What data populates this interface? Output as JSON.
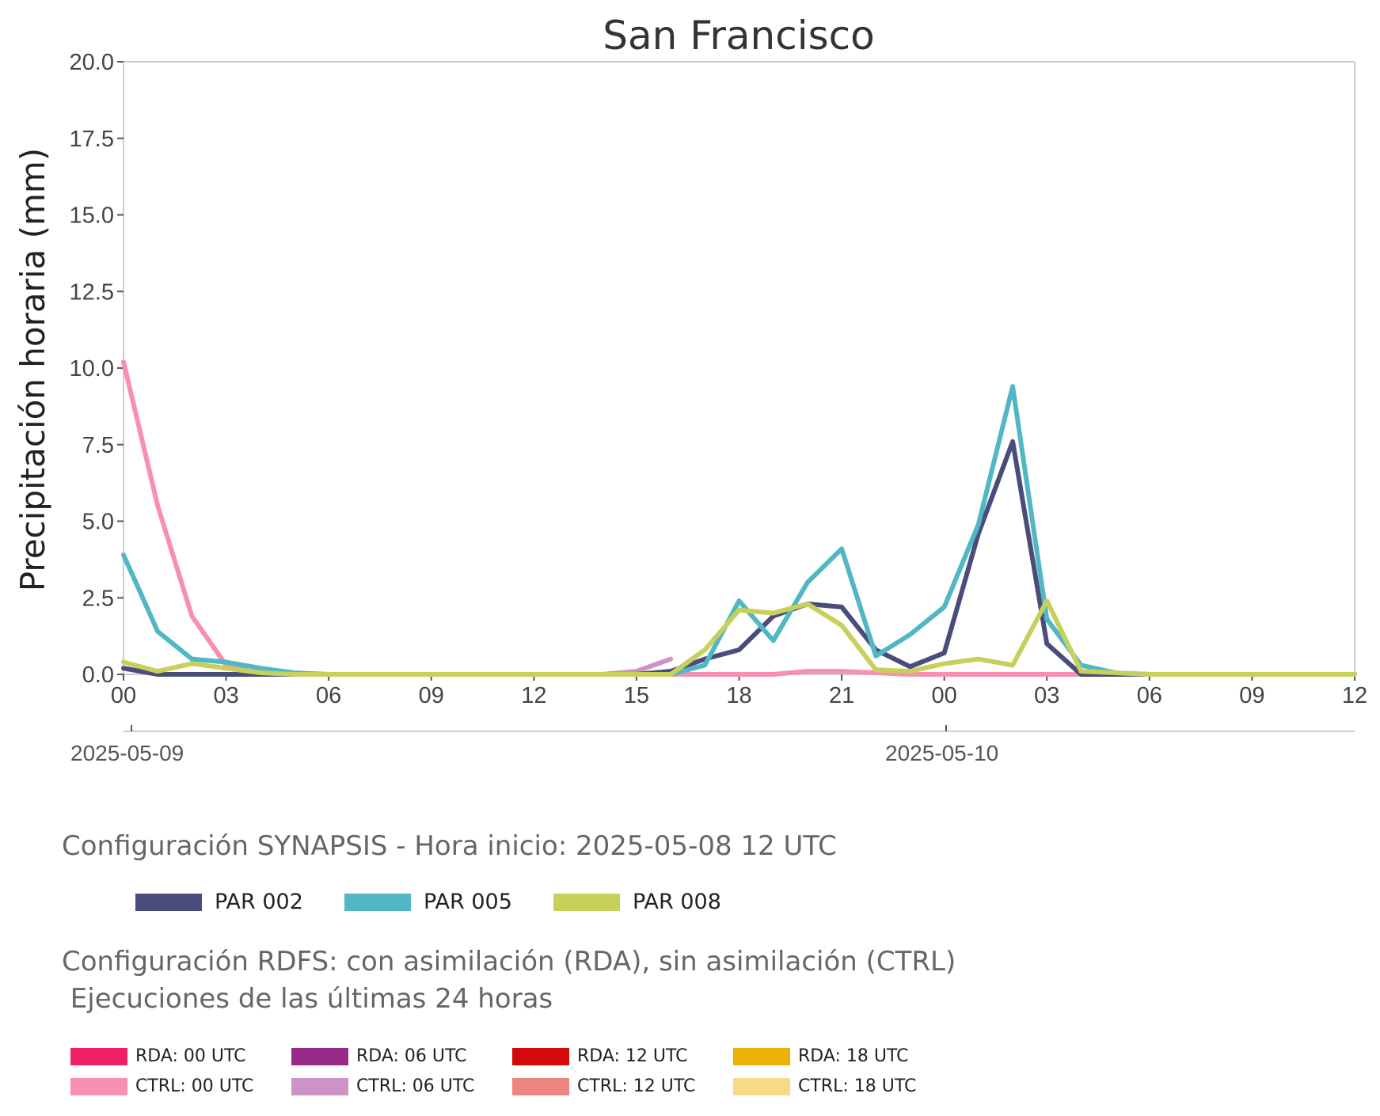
{
  "chart_data": {
    "type": "line",
    "title": "San Francisco",
    "xlabel": "",
    "ylabel": "Precipitación horaria (mm)",
    "ylim": [
      0,
      20
    ],
    "yticks": [
      "0.0",
      "2.5",
      "5.0",
      "7.5",
      "10.0",
      "12.5",
      "15.0",
      "17.5",
      "20.0"
    ],
    "xlim": [
      "2025-05-09 00",
      "2025-05-10 12"
    ],
    "xticks": [
      "00",
      "03",
      "06",
      "09",
      "12",
      "15",
      "18",
      "21",
      "00",
      "03",
      "06",
      "09",
      "12"
    ],
    "date_labels": [
      "2025-05-09",
      "2025-05-10"
    ],
    "grid": false,
    "time_step": "1 h",
    "series": [
      {
        "name": "PAR 002",
        "color": "#4a4d7c",
        "x_start": "2025-05-09 00",
        "values": [
          0.2,
          0,
          0,
          0,
          0,
          0,
          0,
          0,
          0,
          0,
          0,
          0,
          0,
          0,
          0,
          0,
          0.1,
          0.5,
          0.8,
          1.9,
          2.3,
          2.2,
          0.8,
          0.25,
          0.7,
          4.6,
          7.6,
          1.0,
          0,
          0,
          0,
          0,
          0,
          0,
          0,
          0,
          0
        ]
      },
      {
        "name": "PAR 005",
        "color": "#52b7c4",
        "x_start": "2025-05-09 00",
        "values": [
          3.9,
          1.4,
          0.5,
          0.4,
          0.2,
          0.05,
          0,
          0,
          0,
          0,
          0,
          0,
          0,
          0,
          0,
          0,
          0,
          0.3,
          2.4,
          1.1,
          3.0,
          4.1,
          0.6,
          1.3,
          2.2,
          4.9,
          9.4,
          1.8,
          0.3,
          0.05,
          0,
          0,
          0,
          0,
          0,
          0,
          0
        ]
      },
      {
        "name": "PAR 008",
        "color": "#c8d05c",
        "x_start": "2025-05-09 00",
        "values": [
          0.4,
          0.1,
          0.35,
          0.2,
          0.05,
          0,
          0,
          0,
          0,
          0,
          0,
          0,
          0,
          0,
          0,
          0,
          0,
          0.8,
          2.1,
          2.0,
          2.3,
          1.6,
          0.15,
          0.1,
          0.35,
          0.5,
          0.3,
          2.4,
          0.1,
          0.05,
          0,
          0,
          0,
          0,
          0,
          0,
          0
        ]
      },
      {
        "name": "CTRL: 00 UTC",
        "color": "#f78fb1",
        "x_start": "2025-05-09 00",
        "values": [
          10.2,
          5.5,
          1.9,
          0.3,
          0,
          0,
          0,
          0,
          0,
          0,
          0,
          0,
          0,
          0,
          0,
          0,
          0,
          0,
          0,
          0,
          0.1,
          0.1,
          0.05,
          0,
          0,
          0,
          0,
          0,
          0
        ]
      },
      {
        "name": "CTRL: 06 UTC",
        "color": "#cc93c6",
        "x_start": "2025-05-09 03",
        "values": [
          0,
          0,
          0,
          0,
          0,
          0,
          0,
          0,
          0,
          0,
          0,
          0,
          0.1,
          0.5
        ]
      }
    ]
  },
  "synapsis": {
    "heading": "Configuración SYNAPSIS - Hora inicio: 2025-05-08 12 UTC",
    "legend": [
      {
        "label": "PAR 002",
        "color": "#4a4d7c"
      },
      {
        "label": "PAR 005",
        "color": "#52b7c4"
      },
      {
        "label": "PAR 008",
        "color": "#c8d05c"
      }
    ]
  },
  "rdfs": {
    "heading": "Configuración RDFS: con asimilación (RDA), sin asimilación (CTRL)\n Ejecuciones de las últimas 24 horas",
    "legend": [
      {
        "label": "RDA: 00 UTC",
        "color": "#ef1f6a"
      },
      {
        "label": "RDA: 06 UTC",
        "color": "#9a2a8a"
      },
      {
        "label": "RDA: 12 UTC",
        "color": "#d40a0a"
      },
      {
        "label": "RDA: 18 UTC",
        "color": "#eeb105"
      },
      {
        "label": "CTRL: 00 UTC",
        "color": "#f78fb1"
      },
      {
        "label": "CTRL: 06 UTC",
        "color": "#cc93c6"
      },
      {
        "label": "CTRL: 12 UTC",
        "color": "#ec857f"
      },
      {
        "label": "CTRL: 18 UTC",
        "color": "#f8d985"
      }
    ]
  }
}
